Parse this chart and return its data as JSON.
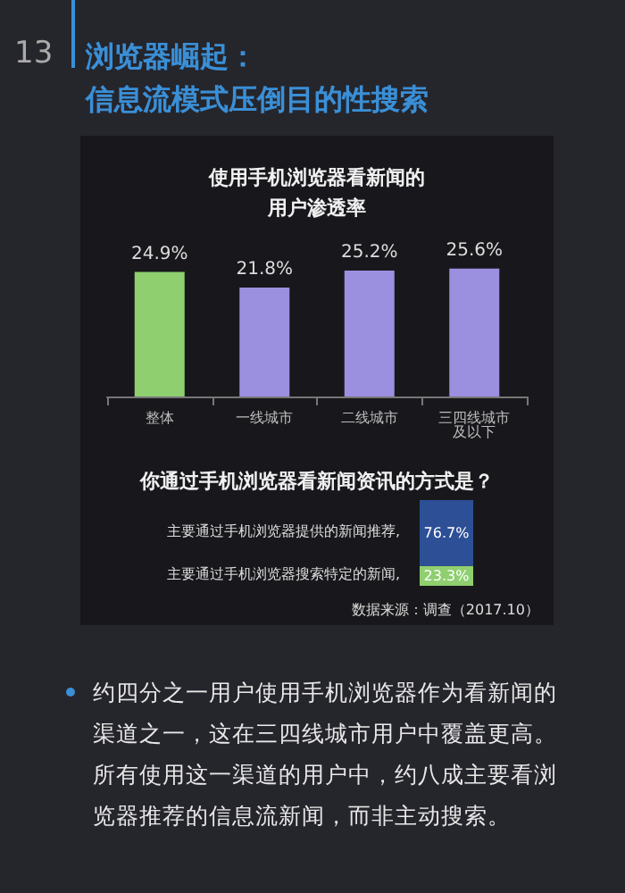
{
  "chart_data": [
    {
      "type": "bar",
      "title": "使用手机浏览器看新闻的用户渗透率",
      "annotations": [
        "13",
        "浏览器崛起：",
        "信息流模式压倒目的性搜索"
      ],
      "categories": [
        "整体",
        "一线城市",
        "二线城市",
        "三四线城市及以下"
      ],
      "values": [
        24.9,
        21.8,
        25.2,
        25.6
      ],
      "colors": [
        "#8fcf6f",
        "#9b8fe0",
        "#9b8fe0",
        "#9b8fe0"
      ],
      "value_labels": [
        "24.9%",
        "21.8%",
        "25.2%",
        "25.6%"
      ],
      "legend": false,
      "grid": false
    },
    {
      "type": "bar",
      "stacked": true,
      "title": "你通过手机浏览器看新闻资讯的方式是？",
      "categories": [
        null
      ],
      "series": [
        {
          "name": "主要通过手机浏览器搜索特定的新闻,",
          "color": "#8fcf6f",
          "values": [
            23.3
          ],
          "value_labels": [
            "23.3%"
          ]
        },
        {
          "name": "主要通过手机浏览器提供的新闻推荐,",
          "color": "#2d4f96",
          "values": [
            76.7
          ],
          "value_labels": [
            "76.7%"
          ]
        }
      ],
      "annotations": [
        "数据来源：调查（2017.10）",
        "约四分之一用户使用手机浏览器作为看新闻的渠道之一，这在三四线城市用户中覆盖更高。所有使用这一渠道的用户中，约八成主要看浏览器推荐的信息流新闻，而非主动搜索。"
      ],
      "legend": false,
      "grid": false
    }
  ]
}
